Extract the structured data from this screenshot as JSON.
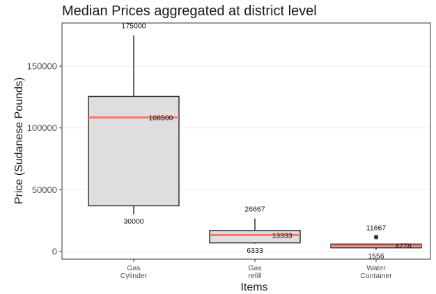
{
  "chart_data": {
    "type": "box",
    "title": "Median Prices aggregated at district level",
    "xlabel": "Items",
    "ylabel": "Price (Sudanese Pounds)",
    "ylim": [
      0,
      175000
    ],
    "yticks": [
      0,
      50000,
      100000,
      150000
    ],
    "grid": true,
    "categories": [
      {
        "lines": [
          "Gas",
          "Cylinder"
        ]
      },
      {
        "lines": [
          "Gas",
          "refill"
        ]
      },
      {
        "lines": [
          "Water",
          "Container"
        ]
      }
    ],
    "boxes": [
      {
        "min": 30000,
        "q1": 37000,
        "median": 108500,
        "q3": 125500,
        "max": 175000,
        "outliers": [],
        "labels": {
          "max": "175000",
          "median": "108500",
          "min": "30000"
        }
      },
      {
        "min": 6333,
        "q1": 7000,
        "median": 13333,
        "q3": 17000,
        "max": 26667,
        "outliers": [],
        "labels": {
          "max": "26667",
          "median": "13333",
          "min": "6333"
        }
      },
      {
        "min": 1556,
        "q1": 3000,
        "median": 4778,
        "q3": 6000,
        "max": 6000,
        "outliers": [
          11667
        ],
        "labels": {
          "max": "11667",
          "median": "4778",
          "min": "1556"
        }
      }
    ],
    "colors": {
      "box_fill": "#dedede",
      "box_stroke": "#333333",
      "median_line": "#f8766d",
      "grid": "#ebebeb",
      "outlier": "#333333"
    }
  }
}
